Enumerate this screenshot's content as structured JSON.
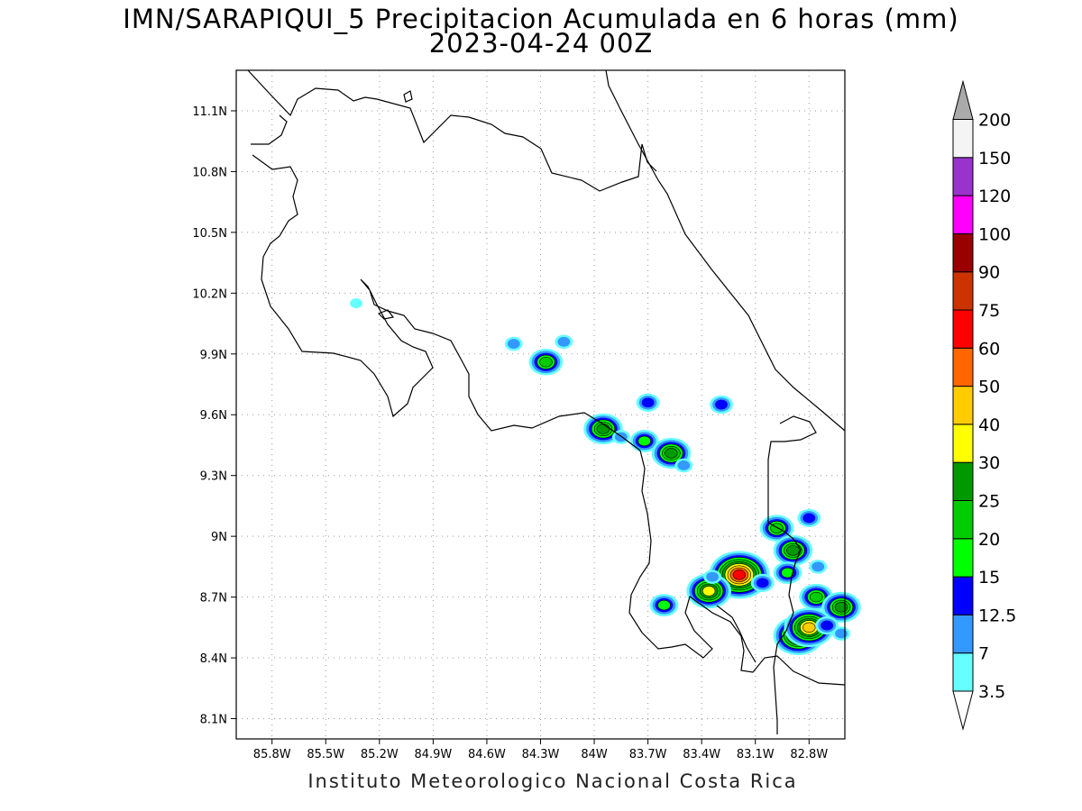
{
  "title": "IMN/SARAPIQUI_5 Precipitacion Acumulada en 6 horas (mm)",
  "subtitle": "2023-04-24 00Z",
  "credit": "Instituto Meteorologico Nacional Costa Rica",
  "chart_data": {
    "type": "heatmap",
    "units": "mm",
    "x_range": [
      -86.0,
      -82.6
    ],
    "y_range": [
      8.0,
      11.3
    ],
    "grid": "dotted",
    "x_ticks": [
      {
        "value": -85.8,
        "label": "85.8W"
      },
      {
        "value": -85.5,
        "label": "85.5W"
      },
      {
        "value": -85.2,
        "label": "85.2W"
      },
      {
        "value": -84.9,
        "label": "84.9W"
      },
      {
        "value": -84.6,
        "label": "84.6W"
      },
      {
        "value": -84.3,
        "label": "84.3W"
      },
      {
        "value": -84.0,
        "label": "84W"
      },
      {
        "value": -83.7,
        "label": "83.7W"
      },
      {
        "value": -83.4,
        "label": "83.4W"
      },
      {
        "value": -83.1,
        "label": "83.1W"
      },
      {
        "value": -82.8,
        "label": "82.8W"
      }
    ],
    "y_ticks": [
      {
        "value": 11.1,
        "label": "11.1N"
      },
      {
        "value": 10.8,
        "label": "10.8N"
      },
      {
        "value": 10.5,
        "label": "10.5N"
      },
      {
        "value": 10.2,
        "label": "10.2N"
      },
      {
        "value": 9.9,
        "label": "9.9N"
      },
      {
        "value": 9.6,
        "label": "9.6N"
      },
      {
        "value": 9.3,
        "label": "9.3N"
      },
      {
        "value": 9.0,
        "label": "9N"
      },
      {
        "value": 8.7,
        "label": "8.7N"
      },
      {
        "value": 8.4,
        "label": "8.4N"
      },
      {
        "value": 8.1,
        "label": "8.1N"
      }
    ],
    "colorbar": [
      {
        "label": "3.5",
        "color": "#66ffff"
      },
      {
        "label": "7",
        "color": "#3399ff"
      },
      {
        "label": "12.5",
        "color": "#0000ff"
      },
      {
        "label": "15",
        "color": "#00ff00"
      },
      {
        "label": "20",
        "color": "#00cc00"
      },
      {
        "label": "25",
        "color": "#009900"
      },
      {
        "label": "30",
        "color": "#ffff00"
      },
      {
        "label": "40",
        "color": "#ffcc00"
      },
      {
        "label": "50",
        "color": "#ff6600"
      },
      {
        "label": "60",
        "color": "#ff0000"
      },
      {
        "label": "75",
        "color": "#cc3300"
      },
      {
        "label": "90",
        "color": "#990000"
      },
      {
        "label": "100",
        "color": "#ff00ff"
      },
      {
        "label": "120",
        "color": "#9933cc"
      },
      {
        "label": "150",
        "color": "#f4f4f4"
      },
      {
        "label": "200",
        "color": "#aaaaaa"
      }
    ],
    "cells": [
      {
        "lon": -85.33,
        "lat": 10.15,
        "value": 3.5
      },
      {
        "lon": -84.45,
        "lat": 9.95,
        "value": 7
      },
      {
        "lon": -84.27,
        "lat": 9.86,
        "value": 20
      },
      {
        "lon": -84.17,
        "lat": 9.96,
        "value": 7
      },
      {
        "lon": -83.95,
        "lat": 9.53,
        "value": 25
      },
      {
        "lon": -83.85,
        "lat": 9.49,
        "value": 7
      },
      {
        "lon": -83.7,
        "lat": 9.66,
        "value": 12.5
      },
      {
        "lon": -83.72,
        "lat": 9.47,
        "value": 15
      },
      {
        "lon": -83.57,
        "lat": 9.41,
        "value": 25
      },
      {
        "lon": -83.5,
        "lat": 9.35,
        "value": 7
      },
      {
        "lon": -83.29,
        "lat": 9.65,
        "value": 12.5
      },
      {
        "lon": -82.98,
        "lat": 9.04,
        "value": 20
      },
      {
        "lon": -82.8,
        "lat": 9.09,
        "value": 12.5
      },
      {
        "lon": -82.89,
        "lat": 8.93,
        "value": 25
      },
      {
        "lon": -82.92,
        "lat": 8.82,
        "value": 15
      },
      {
        "lon": -83.19,
        "lat": 8.81,
        "value": 60
      },
      {
        "lon": -83.06,
        "lat": 8.77,
        "value": 12.5
      },
      {
        "lon": -83.36,
        "lat": 8.73,
        "value": 30
      },
      {
        "lon": -83.34,
        "lat": 8.8,
        "value": 7
      },
      {
        "lon": -83.61,
        "lat": 8.66,
        "value": 15
      },
      {
        "lon": -82.76,
        "lat": 8.7,
        "value": 20
      },
      {
        "lon": -82.62,
        "lat": 8.65,
        "value": 25
      },
      {
        "lon": -82.86,
        "lat": 8.51,
        "value": 40
      },
      {
        "lon": -82.8,
        "lat": 8.55,
        "value": 40
      },
      {
        "lon": -82.7,
        "lat": 8.56,
        "value": 12.5
      },
      {
        "lon": -82.75,
        "lat": 8.85,
        "value": 7
      },
      {
        "lon": -82.62,
        "lat": 8.52,
        "value": 7
      }
    ]
  }
}
